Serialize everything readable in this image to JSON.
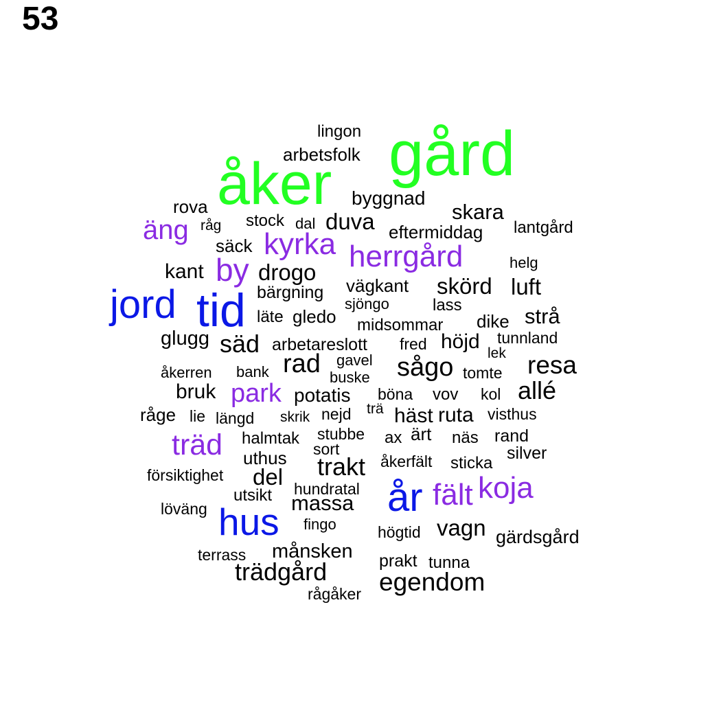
{
  "page_number": "53",
  "colors": {
    "green": "#22ff22",
    "purple": "#8a2be2",
    "blue": "#0b18e6",
    "black": "#000000"
  },
  "words": [
    {
      "text": "gård",
      "color": "green"
    },
    {
      "text": "åker",
      "color": "green"
    },
    {
      "text": "lingon",
      "color": "black"
    },
    {
      "text": "arbetsfolk",
      "color": "black"
    },
    {
      "text": "byggnad",
      "color": "black"
    },
    {
      "text": "rova",
      "color": "black"
    },
    {
      "text": "skara",
      "color": "black"
    },
    {
      "text": "stock",
      "color": "black"
    },
    {
      "text": "dal",
      "color": "black"
    },
    {
      "text": "duva",
      "color": "black"
    },
    {
      "text": "råg",
      "color": "black"
    },
    {
      "text": "äng",
      "color": "purple"
    },
    {
      "text": "lantgård",
      "color": "black"
    },
    {
      "text": "eftermiddag",
      "color": "black"
    },
    {
      "text": "kyrka",
      "color": "purple"
    },
    {
      "text": "säck",
      "color": "black"
    },
    {
      "text": "herrgård",
      "color": "purple"
    },
    {
      "text": "helg",
      "color": "black"
    },
    {
      "text": "by",
      "color": "purple"
    },
    {
      "text": "kant",
      "color": "black"
    },
    {
      "text": "drogo",
      "color": "black"
    },
    {
      "text": "vägkant",
      "color": "black"
    },
    {
      "text": "skörd",
      "color": "black"
    },
    {
      "text": "luft",
      "color": "black"
    },
    {
      "text": "bärgning",
      "color": "black"
    },
    {
      "text": "jord",
      "color": "blue"
    },
    {
      "text": "tid",
      "color": "blue"
    },
    {
      "text": "sjöngo",
      "color": "black"
    },
    {
      "text": "lass",
      "color": "black"
    },
    {
      "text": "läte",
      "color": "black"
    },
    {
      "text": "gledo",
      "color": "black"
    },
    {
      "text": "midsommar",
      "color": "black"
    },
    {
      "text": "dike",
      "color": "black"
    },
    {
      "text": "strå",
      "color": "black"
    },
    {
      "text": "glugg",
      "color": "black"
    },
    {
      "text": "säd",
      "color": "black"
    },
    {
      "text": "arbetareslott",
      "color": "black"
    },
    {
      "text": "fred",
      "color": "black"
    },
    {
      "text": "höjd",
      "color": "black"
    },
    {
      "text": "tunnland",
      "color": "black"
    },
    {
      "text": "lek",
      "color": "black"
    },
    {
      "text": "gavel",
      "color": "black"
    },
    {
      "text": "rad",
      "color": "black"
    },
    {
      "text": "resa",
      "color": "black"
    },
    {
      "text": "sågo",
      "color": "black"
    },
    {
      "text": "åkerren",
      "color": "black"
    },
    {
      "text": "bank",
      "color": "black"
    },
    {
      "text": "buske",
      "color": "black"
    },
    {
      "text": "tomte",
      "color": "black"
    },
    {
      "text": "bruk",
      "color": "black"
    },
    {
      "text": "park",
      "color": "purple"
    },
    {
      "text": "potatis",
      "color": "black"
    },
    {
      "text": "böna",
      "color": "black"
    },
    {
      "text": "vov",
      "color": "black"
    },
    {
      "text": "kol",
      "color": "black"
    },
    {
      "text": "allé",
      "color": "black"
    },
    {
      "text": "råge",
      "color": "black"
    },
    {
      "text": "lie",
      "color": "black"
    },
    {
      "text": "längd",
      "color": "black"
    },
    {
      "text": "skrik",
      "color": "black"
    },
    {
      "text": "nejd",
      "color": "black"
    },
    {
      "text": "trä",
      "color": "black"
    },
    {
      "text": "häst",
      "color": "black"
    },
    {
      "text": "ruta",
      "color": "black"
    },
    {
      "text": "visthus",
      "color": "black"
    },
    {
      "text": "träd",
      "color": "purple"
    },
    {
      "text": "halmtak",
      "color": "black"
    },
    {
      "text": "stubbe",
      "color": "black"
    },
    {
      "text": "ax",
      "color": "black"
    },
    {
      "text": "ärt",
      "color": "black"
    },
    {
      "text": "näs",
      "color": "black"
    },
    {
      "text": "rand",
      "color": "black"
    },
    {
      "text": "uthus",
      "color": "black"
    },
    {
      "text": "sort",
      "color": "black"
    },
    {
      "text": "silver",
      "color": "black"
    },
    {
      "text": "trakt",
      "color": "black"
    },
    {
      "text": "åkerfält",
      "color": "black"
    },
    {
      "text": "sticka",
      "color": "black"
    },
    {
      "text": "försiktighet",
      "color": "black"
    },
    {
      "text": "del",
      "color": "black"
    },
    {
      "text": "koja",
      "color": "purple"
    },
    {
      "text": "år",
      "color": "blue"
    },
    {
      "text": "fält",
      "color": "purple"
    },
    {
      "text": "hundratal",
      "color": "black"
    },
    {
      "text": "utsikt",
      "color": "black"
    },
    {
      "text": "massa",
      "color": "black"
    },
    {
      "text": "löväng",
      "color": "black"
    },
    {
      "text": "hus",
      "color": "blue"
    },
    {
      "text": "fingo",
      "color": "black"
    },
    {
      "text": "vagn",
      "color": "black"
    },
    {
      "text": "högtid",
      "color": "black"
    },
    {
      "text": "gärdsgård",
      "color": "black"
    },
    {
      "text": "terrass",
      "color": "black"
    },
    {
      "text": "månsken",
      "color": "black"
    },
    {
      "text": "prakt",
      "color": "black"
    },
    {
      "text": "tunna",
      "color": "black"
    },
    {
      "text": "trädgård",
      "color": "black"
    },
    {
      "text": "egendom",
      "color": "black"
    },
    {
      "text": "rågåker",
      "color": "black"
    }
  ]
}
